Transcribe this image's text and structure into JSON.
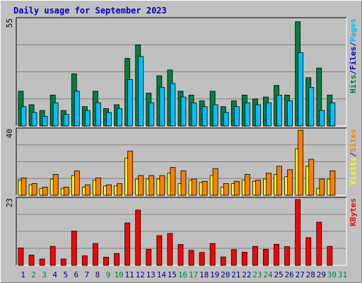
{
  "title": "Daily usage for September 2023",
  "colors": {
    "hits": "#008040",
    "files": "#00c0ff",
    "visits": "#ffff00",
    "sites": "#ff8000",
    "kbytes": "#ff0000",
    "weekend": "#008040",
    "weekday": "#000080"
  },
  "chart_data": [
    {
      "type": "bar",
      "panel": "top",
      "ymax_label": "55",
      "legend": [
        {
          "text": "Hits",
          "color": "#008040"
        },
        {
          "text": "/",
          "color": "#0000c0"
        },
        {
          "text": "Files",
          "color": "#0000c0"
        },
        {
          "text": "/",
          "color": "#0000c0"
        },
        {
          "text": "Pages",
          "color": "#00c0ff"
        }
      ],
      "categories": [
        "1",
        "2",
        "3",
        "4",
        "5",
        "6",
        "7",
        "8",
        "9",
        "10",
        "11",
        "12",
        "13",
        "14",
        "15",
        "16",
        "17",
        "18",
        "19",
        "20",
        "21",
        "22",
        "23",
        "24",
        "25",
        "26",
        "27",
        "28",
        "29",
        "30"
      ],
      "series": [
        {
          "name": "Hits",
          "color": "#008040",
          "values": [
            18,
            11,
            8,
            16,
            8,
            27,
            10,
            18,
            9,
            11,
            35,
            42,
            17,
            26,
            29,
            18,
            16,
            13,
            18,
            10,
            13,
            16,
            14,
            15,
            21,
            16,
            54,
            25,
            30,
            16
          ]
        },
        {
          "name": "Files",
          "color": "#00c0ff",
          "values": [
            10,
            7,
            5,
            12,
            6,
            18,
            8,
            12,
            7,
            9,
            24,
            36,
            12,
            20,
            22,
            15,
            12,
            10,
            11,
            7,
            10,
            12,
            11,
            12,
            16,
            13,
            38,
            20,
            8,
            12
          ]
        }
      ],
      "ylim": [
        0,
        55
      ]
    },
    {
      "type": "bar",
      "panel": "middle",
      "ymax_label": "40",
      "legend": [
        {
          "text": "Visits",
          "color": "#ffff00"
        },
        {
          "text": "/",
          "color": "#0000c0"
        },
        {
          "text": "Sites",
          "color": "#ff8000"
        }
      ],
      "categories": [
        "1",
        "2",
        "3",
        "4",
        "5",
        "6",
        "7",
        "8",
        "9",
        "10",
        "11",
        "12",
        "13",
        "14",
        "15",
        "16",
        "17",
        "18",
        "19",
        "20",
        "21",
        "22",
        "23",
        "24",
        "25",
        "26",
        "27",
        "28",
        "29",
        "30"
      ],
      "series": [
        {
          "name": "Visits",
          "color": "#ffff00",
          "values": [
            13,
            9,
            6,
            14,
            6,
            17,
            7,
            13,
            8,
            8,
            32,
            14,
            14,
            14,
            19,
            10,
            13,
            11,
            17,
            7,
            10,
            13,
            12,
            14,
            18,
            16,
            40,
            25,
            6,
            14
          ]
        },
        {
          "name": "Sites",
          "color": "#ff8000",
          "values": [
            15,
            10,
            7,
            18,
            7,
            21,
            9,
            15,
            9,
            10,
            38,
            17,
            17,
            17,
            24,
            21,
            14,
            12,
            23,
            10,
            12,
            18,
            13,
            19,
            25,
            22,
            56,
            31,
            14,
            21
          ]
        }
      ],
      "ylim": [
        0,
        56
      ]
    },
    {
      "type": "bar",
      "panel": "bottom",
      "ymax_label": "23",
      "legend": [
        {
          "text": "KBytes",
          "color": "#ff0000"
        }
      ],
      "categories": [
        "1",
        "2",
        "3",
        "4",
        "5",
        "6",
        "7",
        "8",
        "9",
        "10",
        "11",
        "12",
        "13",
        "14",
        "15",
        "16",
        "17",
        "18",
        "19",
        "20",
        "21",
        "22",
        "23",
        "24",
        "25",
        "26",
        "27",
        "28",
        "29",
        "30"
      ],
      "series": [
        {
          "name": "KBytes",
          "color": "#ff0000",
          "values": [
            6.6,
            3.9,
            2.4,
            7.2,
            2.4,
            13.0,
            3.6,
            8.3,
            3.1,
            4.5,
            16.1,
            21.0,
            6.1,
            11.3,
            12.1,
            7.9,
            5.7,
            4.9,
            8.3,
            3.2,
            6.0,
            5.0,
            7.2,
            6.1,
            8.0,
            7.1,
            25.0,
            10.5,
            16.4,
            7.2
          ]
        }
      ],
      "ylim": [
        0,
        25
      ]
    }
  ],
  "days": [
    {
      "label": "1",
      "weekend": false
    },
    {
      "label": "2",
      "weekend": true
    },
    {
      "label": "3",
      "weekend": true
    },
    {
      "label": "4",
      "weekend": false
    },
    {
      "label": "5",
      "weekend": false
    },
    {
      "label": "6",
      "weekend": false
    },
    {
      "label": "7",
      "weekend": false
    },
    {
      "label": "8",
      "weekend": false
    },
    {
      "label": "9",
      "weekend": true
    },
    {
      "label": "10",
      "weekend": true
    },
    {
      "label": "11",
      "weekend": false
    },
    {
      "label": "12",
      "weekend": false
    },
    {
      "label": "13",
      "weekend": false
    },
    {
      "label": "14",
      "weekend": false
    },
    {
      "label": "15",
      "weekend": false
    },
    {
      "label": "16",
      "weekend": true
    },
    {
      "label": "17",
      "weekend": true
    },
    {
      "label": "18",
      "weekend": false
    },
    {
      "label": "19",
      "weekend": false
    },
    {
      "label": "20",
      "weekend": false
    },
    {
      "label": "21",
      "weekend": false
    },
    {
      "label": "22",
      "weekend": false
    },
    {
      "label": "23",
      "weekend": true
    },
    {
      "label": "24",
      "weekend": true
    },
    {
      "label": "25",
      "weekend": false
    },
    {
      "label": "26",
      "weekend": false
    },
    {
      "label": "27",
      "weekend": false
    },
    {
      "label": "28",
      "weekend": false
    },
    {
      "label": "29",
      "weekend": false
    },
    {
      "label": "30",
      "weekend": true
    },
    {
      "label": "31",
      "weekend": true
    }
  ]
}
